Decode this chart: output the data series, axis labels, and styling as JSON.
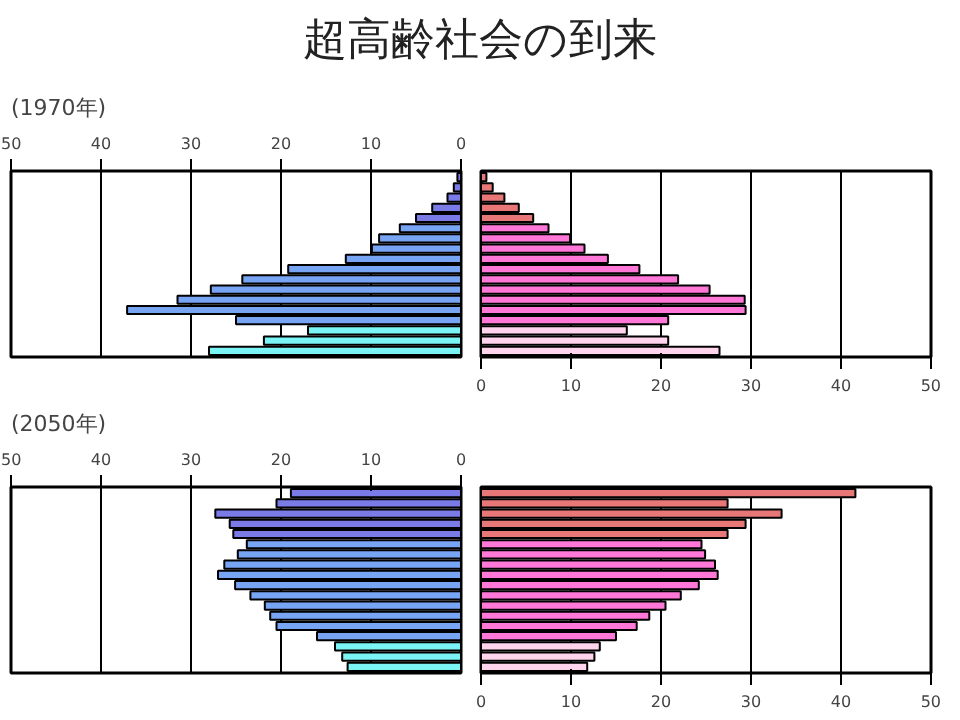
{
  "chart_data": [
    {
      "type": "bar",
      "orientation": "horizontal",
      "title": "超高齢社会の到来",
      "subtitle": "(1970年)",
      "categories": [
        null,
        null,
        null,
        null,
        null,
        null,
        null,
        null,
        null,
        null,
        null,
        null,
        null,
        null,
        null,
        null,
        null,
        null
      ],
      "xlim": [
        50,
        0
      ],
      "xticks": [
        50,
        40,
        30,
        20,
        10,
        0
      ],
      "grid": "x",
      "tick_labels": "x",
      "series": [
        {
          "values": [
            0.4,
            0.8,
            1.5,
            3.2,
            5.0,
            6.8,
            9.1,
            9.9,
            12.8,
            19.2,
            24.3,
            27.8,
            31.5,
            37.1,
            25.0,
            17.0,
            21.9,
            28.0
          ],
          "colors": [
            "#7b7be8",
            "#7b7be8",
            "#7b7be8",
            "#7b7be8",
            "#7b7be8",
            "#78a4f4",
            "#78a4f4",
            "#78a4f4",
            "#78a4f4",
            "#78a4f4",
            "#78a4f4",
            "#78a4f4",
            "#78a4f4",
            "#78a4f4",
            "#78a4f4",
            "#7af4f4",
            "#7af4f4",
            "#7af4f4"
          ]
        }
      ]
    },
    {
      "type": "bar",
      "orientation": "horizontal",
      "categories": [
        null,
        null,
        null,
        null,
        null,
        null,
        null,
        null,
        null,
        null,
        null,
        null,
        null,
        null,
        null,
        null,
        null,
        null
      ],
      "xlim": [
        0,
        50
      ],
      "xticks": [
        0,
        10,
        20,
        30,
        40,
        50
      ],
      "grid": "x",
      "tick_labels": "x",
      "series": [
        {
          "values": [
            0.6,
            1.3,
            2.6,
            4.2,
            5.8,
            7.5,
            9.9,
            11.5,
            14.1,
            17.6,
            21.9,
            25.4,
            29.3,
            29.4,
            20.8,
            16.2,
            20.8,
            26.5
          ],
          "colors": [
            "#e87878",
            "#e87878",
            "#e87878",
            "#e87878",
            "#e87878",
            "#ff78d8",
            "#ff78d8",
            "#ff78d8",
            "#ff78d8",
            "#ff78d8",
            "#ff78d8",
            "#ff78d8",
            "#ff78d8",
            "#ff78d8",
            "#ff78d8",
            "#ffd4ec",
            "#ffd4ec",
            "#ffd4ec"
          ]
        }
      ]
    },
    {
      "type": "bar",
      "orientation": "horizontal",
      "title": "(2050年)",
      "categories": [
        null,
        null,
        null,
        null,
        null,
        null,
        null,
        null,
        null,
        null,
        null,
        null,
        null,
        null,
        null,
        null,
        null,
        null
      ],
      "xlim": [
        50,
        0
      ],
      "xticks": [
        50,
        40,
        30,
        20,
        10,
        0
      ],
      "grid": "x",
      "tick_labels": "x",
      "series": [
        {
          "values": [
            18.9,
            20.5,
            27.3,
            25.7,
            25.3,
            23.8,
            24.8,
            26.3,
            27.0,
            25.1,
            23.4,
            21.8,
            21.2,
            20.5,
            16.0,
            14.0,
            13.2,
            12.6
          ],
          "colors": [
            "#7b7be8",
            "#7b7be8",
            "#7b7be8",
            "#7b7be8",
            "#7b7be8",
            "#78a4f4",
            "#78a4f4",
            "#78a4f4",
            "#78a4f4",
            "#78a4f4",
            "#78a4f4",
            "#78a4f4",
            "#78a4f4",
            "#78a4f4",
            "#78a4f4",
            "#7af4f4",
            "#7af4f4",
            "#7af4f4"
          ]
        }
      ]
    },
    {
      "type": "bar",
      "orientation": "horizontal",
      "categories": [
        null,
        null,
        null,
        null,
        null,
        null,
        null,
        null,
        null,
        null,
        null,
        null,
        null,
        null,
        null,
        null,
        null,
        null
      ],
      "xlim": [
        0,
        50
      ],
      "xticks": [
        0,
        10,
        20,
        30,
        40,
        50
      ],
      "grid": "x",
      "tick_labels": "x",
      "series": [
        {
          "values": [
            41.6,
            27.4,
            33.4,
            29.4,
            27.4,
            24.5,
            24.9,
            26.0,
            26.3,
            24.2,
            22.2,
            20.5,
            18.7,
            17.3,
            15.0,
            13.2,
            12.6,
            11.8
          ],
          "colors": [
            "#e87878",
            "#e87878",
            "#e87878",
            "#e87878",
            "#e87878",
            "#ff78d8",
            "#ff78d8",
            "#ff78d8",
            "#ff78d8",
            "#ff78d8",
            "#ff78d8",
            "#ff78d8",
            "#ff78d8",
            "#ff78d8",
            "#ff78d8",
            "#ffd4ec",
            "#ffd4ec",
            "#ffd4ec"
          ]
        }
      ]
    }
  ]
}
